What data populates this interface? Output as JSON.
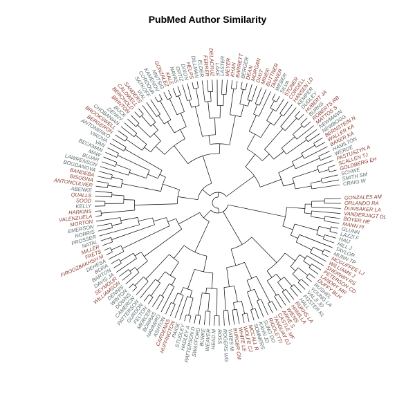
{
  "title": "PubMed Author Similarity",
  "colors": {
    "branch": "#000000",
    "label_group_a": "#8b3a2e",
    "label_group_b": "#5a6a6a"
  },
  "tip_labels": [
    {
      "text": "GONZALES AM",
      "group": "a"
    },
    {
      "text": "ORLANDO RA",
      "group": "a"
    },
    {
      "text": "DUNSAKER LA",
      "group": "a"
    },
    {
      "text": "VANDERJAGT DL",
      "group": "a"
    },
    {
      "text": "BOYER HE",
      "group": "a"
    },
    {
      "text": "MANN PI",
      "group": "a"
    },
    {
      "text": "GLUNN",
      "group": "b"
    },
    {
      "text": "LAZZI F",
      "group": "b"
    },
    {
      "text": "HAIJ",
      "group": "b"
    },
    {
      "text": "HILL J",
      "group": "b"
    },
    {
      "text": "TAYLOR",
      "group": "b"
    },
    {
      "text": "MUNN TP",
      "group": "b"
    },
    {
      "text": "MCGUFFEE LJ",
      "group": "a"
    },
    {
      "text": "WILLIAMS J",
      "group": "a"
    },
    {
      "text": "SHERWIN RS",
      "group": "a"
    },
    {
      "text": "PETERSON CD",
      "group": "a"
    },
    {
      "text": "LANDRY MR",
      "group": "a"
    },
    {
      "text": "DUFFY BLH",
      "group": "a"
    },
    {
      "text": "RUSHEL",
      "group": "b"
    },
    {
      "text": "YOUNG LA",
      "group": "b"
    },
    {
      "text": "VALJI JD",
      "group": "b"
    },
    {
      "text": "FOSTER KL",
      "group": "b"
    },
    {
      "text": "HALL",
      "group": "b"
    },
    {
      "text": "RUKHS LA",
      "group": "a"
    },
    {
      "text": "HAMILLA",
      "group": "a"
    },
    {
      "text": "WIENS",
      "group": "a"
    },
    {
      "text": "ARNE S",
      "group": "a"
    },
    {
      "text": "CASTLE MF",
      "group": "a"
    },
    {
      "text": "TANGUAY DJ",
      "group": "a"
    },
    {
      "text": "RIGOLETTI",
      "group": "a"
    },
    {
      "text": "SUNG DO",
      "group": "b"
    },
    {
      "text": "KAHN JD",
      "group": "b"
    },
    {
      "text": "SOMMERS",
      "group": "b"
    },
    {
      "text": "MCCALL R",
      "group": "a"
    },
    {
      "text": "WOLFE CJ",
      "group": "a"
    },
    {
      "text": "WHITE LE",
      "group": "a"
    },
    {
      "text": "BURGER CM",
      "group": "a"
    },
    {
      "text": "YATES M",
      "group": "b"
    },
    {
      "text": "ROGERS WG",
      "group": "b"
    },
    {
      "text": "ROSS",
      "group": "b"
    },
    {
      "text": "HEAD M",
      "group": "b"
    },
    {
      "text": "WEAVER",
      "group": "b"
    },
    {
      "text": "BURKE",
      "group": "b"
    },
    {
      "text": "SWAFFORD",
      "group": "b"
    },
    {
      "text": "PATTERSON D",
      "group": "b"
    },
    {
      "text": "HADLEY A",
      "group": "b"
    },
    {
      "text": "STUDLEY",
      "group": "b"
    },
    {
      "text": "PAIGE",
      "group": "b"
    },
    {
      "text": "HUFFINGTON",
      "group": "a"
    },
    {
      "text": "CARDENAS",
      "group": "a"
    },
    {
      "text": "ASHTON",
      "group": "b"
    },
    {
      "text": "NAVARRO",
      "group": "b"
    },
    {
      "text": "BORRAS",
      "group": "b"
    },
    {
      "text": "MERCER",
      "group": "b"
    },
    {
      "text": "FELTON",
      "group": "b"
    },
    {
      "text": "GURDON",
      "group": "b"
    },
    {
      "text": "PATTERSON",
      "group": "b"
    },
    {
      "text": "CAMERON",
      "group": "b"
    },
    {
      "text": "DOWNS",
      "group": "b"
    },
    {
      "text": "WINTON",
      "group": "b"
    },
    {
      "text": "DENNIS",
      "group": "b"
    },
    {
      "text": "WILLIAMSON",
      "group": "a"
    },
    {
      "text": "SEYMOUR",
      "group": "a"
    },
    {
      "text": "DAVIS JA",
      "group": "b"
    },
    {
      "text": "BARTON",
      "group": "b"
    },
    {
      "text": "BORA",
      "group": "b"
    },
    {
      "text": "DEHESA",
      "group": "b"
    },
    {
      "text": "FIROOZBAKHSH M",
      "group": "a"
    },
    {
      "text": "FRETS",
      "group": "a"
    },
    {
      "text": "MILLER",
      "group": "a"
    },
    {
      "text": "NATAL",
      "group": "b"
    },
    {
      "text": "PROSSER",
      "group": "b"
    },
    {
      "text": "NORRIS",
      "group": "b"
    },
    {
      "text": "EMERSON",
      "group": "b"
    },
    {
      "text": "MORTON",
      "group": "a"
    },
    {
      "text": "VALENZUELA",
      "group": "a"
    },
    {
      "text": "HARKINS",
      "group": "a"
    },
    {
      "text": "KELLY",
      "group": "b"
    },
    {
      "text": "SOOD",
      "group": "a"
    },
    {
      "text": "QUALLS",
      "group": "a"
    },
    {
      "text": "ABENKE",
      "group": "b"
    },
    {
      "text": "ANTONCULVER",
      "group": "a"
    },
    {
      "text": "BISOGNA",
      "group": "a"
    },
    {
      "text": "BANDEBA",
      "group": "a"
    },
    {
      "text": "BOGDANOVA",
      "group": "b"
    },
    {
      "text": "LAWRENSON",
      "group": "b"
    },
    {
      "text": "BUJAR",
      "group": "b"
    },
    {
      "text": "MAW",
      "group": "b"
    },
    {
      "text": "BECKMAN",
      "group": "b"
    },
    {
      "text": "VAN",
      "group": "b"
    },
    {
      "text": "VIKOVA",
      "group": "b"
    },
    {
      "text": "ANTONENKO",
      "group": "b"
    },
    {
      "text": "BERGERON",
      "group": "a"
    },
    {
      "text": "BROOKSWELL",
      "group": "a"
    },
    {
      "text": "CHOBANIAN",
      "group": "b"
    },
    {
      "text": "DENNY",
      "group": "b"
    },
    {
      "text": "BUCK",
      "group": "b"
    },
    {
      "text": "BRINTON",
      "group": "a"
    },
    {
      "text": "BERCHOLD",
      "group": "a"
    },
    {
      "text": "CALDWELL",
      "group": "a"
    },
    {
      "text": "SANDERS",
      "group": "a"
    },
    {
      "text": "VIAL",
      "group": "b"
    },
    {
      "text": "SATKOFF",
      "group": "b"
    },
    {
      "text": "CORDOVA",
      "group": "b"
    },
    {
      "text": "KAMENOV",
      "group": "b"
    },
    {
      "text": "NNITSIG",
      "group": "b"
    },
    {
      "text": "GONZALEZ",
      "group": "a"
    },
    {
      "text": "KALE",
      "group": "a"
    },
    {
      "text": "NAVAS",
      "group": "b"
    },
    {
      "text": "ORTIZ",
      "group": "b"
    },
    {
      "text": "DIXON",
      "group": "b"
    },
    {
      "text": "HELPS",
      "group": "a"
    },
    {
      "text": "DILLMAN",
      "group": "b"
    },
    {
      "text": "ELDER",
      "group": "b"
    },
    {
      "text": "FERRER",
      "group": "a"
    },
    {
      "text": "DELACRUZ",
      "group": "a"
    },
    {
      "text": "LAKE",
      "group": "b"
    },
    {
      "text": "LASTER",
      "group": "b"
    },
    {
      "text": "MEYER",
      "group": "a"
    },
    {
      "text": "KHAN",
      "group": "a"
    },
    {
      "text": "BARRETT",
      "group": "a"
    },
    {
      "text": "BERGER",
      "group": "b"
    },
    {
      "text": "DEAN",
      "group": "a"
    },
    {
      "text": "MORGAN",
      "group": "a"
    },
    {
      "text": "DIXIT",
      "group": "a"
    },
    {
      "text": "MINER",
      "group": "a"
    },
    {
      "text": "BUTTNER",
      "group": "a"
    },
    {
      "text": "TANNER",
      "group": "a"
    },
    {
      "text": "WEBER",
      "group": "b"
    },
    {
      "text": "SILVA",
      "group": "b"
    },
    {
      "text": "STONER",
      "group": "a"
    },
    {
      "text": "CORDELL",
      "group": "a"
    },
    {
      "text": "HANSEN LD",
      "group": "a"
    },
    {
      "text": "KEMPER",
      "group": "b"
    },
    {
      "text": "DUDLEY",
      "group": "b"
    },
    {
      "text": "HUBERT JA",
      "group": "a"
    },
    {
      "text": "BURNS",
      "group": "b"
    },
    {
      "text": "ROBERTS RB",
      "group": "a"
    },
    {
      "text": "MATTOS S",
      "group": "a"
    },
    {
      "text": "NEWMANN",
      "group": "b"
    },
    {
      "text": "NEWBOGG",
      "group": "b"
    },
    {
      "text": "BERNSTEIN N",
      "group": "a"
    },
    {
      "text": "WALLER KA",
      "group": "a"
    },
    {
      "text": "BAKER KA",
      "group": "a"
    },
    {
      "text": "HAMILTON",
      "group": "b"
    },
    {
      "text": "WERDE",
      "group": "b"
    },
    {
      "text": "PASTUSZYN A",
      "group": "a"
    },
    {
      "text": "SCALLEN TJ",
      "group": "a"
    },
    {
      "text": "GOLDBERG EH",
      "group": "a"
    },
    {
      "text": "SCHWE",
      "group": "b"
    },
    {
      "text": "SMITH SM",
      "group": "b"
    },
    {
      "text": "CRAIG W",
      "group": "b"
    }
  ]
}
